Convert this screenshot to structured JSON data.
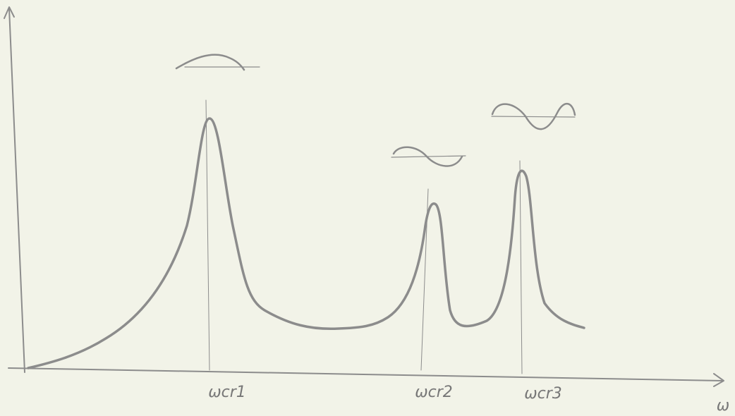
{
  "labels": [
    "ωcr1",
    "ωcr2",
    "ωcr3"
  ],
  "axis_label": "ω"
}
